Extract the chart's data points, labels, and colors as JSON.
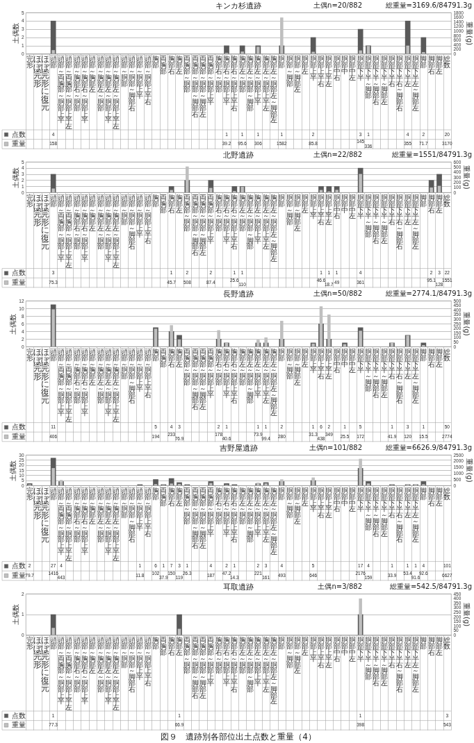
{
  "chart_data": [
    {
      "type": "bar",
      "title": "キンカ杉遺跡",
      "annotations": [
        "土偶n=20/882",
        "総重量=3169.6/84791.3g"
      ],
      "ylabel": "土偶数",
      "y2label": "重量(g)",
      "categories": [
        "完形",
        "ほぼ完形",
        "ほぼ完形に復元",
        "頭部",
        "頭部～両胸部～胴部上半",
        "頭部～両胸部～胴部上半左",
        "頭部～胸部右～胴部",
        "頭部～胸部右～胴部上半",
        "頭部～胸部左",
        "頭部～胸部左～胴部",
        "頭部～胸部左～胴部上半",
        "頭部～胸部左～胴部上半左",
        "頭部～胴部",
        "頭部～胴部～脚部右",
        "頭部～胴部上半",
        "頭部～胴部上半右",
        "胸部",
        "両胸部",
        "胸部右",
        "胸部左",
        "両胸部～胴部",
        "両胸部～胴部～脚部右",
        "両胸部～胴部～脚部左",
        "両胸部～胴部上半",
        "胸部右～胴部",
        "胸部右～胴部上半",
        "胸部右～胴部上半右",
        "胸部左～胴部",
        "胸部左～胴部～脚部",
        "胸部左～胴部上半",
        "胸部左～胴部上半左",
        "胸部左～胴部左～脚部左",
        "胴部",
        "胴部～脚部",
        "胴部～脚部左",
        "胴部左",
        "胴部上半",
        "胴部上半右",
        "胴部上半左",
        "胴部中右",
        "胴部中",
        "胴部中左",
        "胴部下半",
        "胴部下半～脚部",
        "胴部下半～脚部右",
        "胴部下半～脚部左",
        "胴部下半右",
        "胴部下半右～脚部右",
        "胴部下半左",
        "胴部下半左～脚部左",
        "脚部",
        "脚部右",
        "脚部左",
        "総数"
      ],
      "series": [
        {
          "name": "点数",
          "color": "#595959",
          "values": [
            null,
            null,
            null,
            4,
            null,
            null,
            null,
            null,
            null,
            null,
            null,
            null,
            null,
            null,
            null,
            null,
            null,
            null,
            null,
            null,
            null,
            null,
            null,
            null,
            null,
            1,
            null,
            1,
            null,
            1,
            null,
            null,
            1,
            null,
            null,
            null,
            2,
            null,
            null,
            null,
            null,
            null,
            3,
            1,
            null,
            null,
            null,
            null,
            4,
            null,
            2,
            null,
            null,
            null
          ],
          "value_labels": [
            null,
            null,
            null,
            "4",
            null,
            null,
            null,
            null,
            null,
            null,
            null,
            null,
            null,
            null,
            null,
            null,
            null,
            null,
            null,
            null,
            null,
            null,
            null,
            null,
            null,
            "1",
            null,
            "1",
            null,
            "1",
            null,
            null,
            "1",
            null,
            null,
            null,
            "2",
            null,
            null,
            null,
            null,
            null,
            "3",
            "1",
            null,
            null,
            null,
            null,
            "4",
            null,
            "2",
            null,
            null,
            "20"
          ]
        },
        {
          "name": "重量",
          "color": "#bfbfbf",
          "axis": "y2",
          "values": [
            null,
            null,
            null,
            158,
            null,
            null,
            null,
            null,
            null,
            null,
            null,
            null,
            null,
            null,
            null,
            null,
            null,
            null,
            null,
            null,
            null,
            null,
            null,
            null,
            null,
            39.2,
            null,
            95.6,
            null,
            306,
            null,
            null,
            1582,
            null,
            null,
            null,
            85.8,
            null,
            null,
            null,
            null,
            null,
            145,
            336,
            null,
            null,
            null,
            null,
            355,
            null,
            71.7,
            null,
            null,
            null
          ],
          "value_labels": [
            null,
            null,
            null,
            "158",
            null,
            null,
            null,
            null,
            null,
            null,
            null,
            null,
            null,
            null,
            null,
            null,
            null,
            null,
            null,
            null,
            null,
            null,
            null,
            null,
            null,
            "39.2",
            null,
            "95.6",
            null,
            "306",
            null,
            null,
            "1582",
            null,
            null,
            null,
            "85.8",
            null,
            null,
            null,
            null,
            null,
            "145",
            "336",
            null,
            null,
            null,
            null,
            "355",
            null,
            "71.7",
            null,
            null,
            "3170"
          ]
        }
      ],
      "ylim": [
        0,
        5
      ],
      "yticks": [
        0,
        1,
        2,
        3,
        4,
        5
      ],
      "y2lim": [
        0,
        1800
      ],
      "y2ticks": [
        0,
        200,
        400,
        600,
        800,
        1000,
        1200,
        1400,
        1600,
        1800
      ],
      "grid": "y",
      "legend": "bottom left"
    },
    {
      "type": "bar",
      "title": "北野遺跡",
      "annotations": [
        "土偶n=22/882",
        "総重量=1551/84791.3g"
      ],
      "ylabel": "土偶数",
      "y2label": "重量(g)",
      "categories": [
        "完形",
        "ほぼ完形",
        "ほぼ完形に復元",
        "頭部",
        "頭部～両胸部～胴部上半",
        "頭部～両胸部～胴部上半左",
        "頭部～胸部右～胴部",
        "頭部～胸部右～胴部上半",
        "頭部～胸部左",
        "頭部～胸部左～胴部",
        "頭部～胸部左～胴部上半",
        "頭部～胸部左～胴部上半左",
        "頭部～胴部",
        "頭部～胴部～脚部右",
        "頭部～胴部上半",
        "頭部～胴部上半右",
        "胸部",
        "両胸部",
        "胸部右",
        "胸部左",
        "両胸部～胴部",
        "両胸部～胴部～脚部右",
        "両胸部～胴部～脚部左",
        "両胸部～胴部上半",
        "胸部右～胴部",
        "胸部右～胴部上半",
        "胸部右～胴部上半右",
        "胸部左～胴部",
        "胸部左～胴部～脚部",
        "胸部左～胴部上半",
        "胸部左～胴部上半左",
        "胸部左～胴部左～脚部左",
        "胴部",
        "胴部～脚部",
        "胴部～脚部左",
        "胴部左",
        "胴部上半",
        "胴部上半右",
        "胴部上半左",
        "胴部中右",
        "胴部中",
        "胴部中左",
        "胴部下半",
        "胴部下半～脚部",
        "胴部下半～脚部右",
        "胴部下半～脚部左",
        "胴部下半右",
        "胴部下半右～脚部右",
        "胴部下半左",
        "胴部下半左～脚部左",
        "脚部",
        "脚部右",
        "脚部左",
        "総数"
      ],
      "series": [
        {
          "name": "点数",
          "color": "#595959",
          "values": [
            null,
            null,
            null,
            3,
            null,
            null,
            null,
            null,
            null,
            null,
            null,
            null,
            null,
            null,
            null,
            null,
            null,
            null,
            1,
            null,
            2,
            null,
            null,
            2,
            null,
            null,
            1,
            1,
            null,
            null,
            null,
            null,
            null,
            null,
            null,
            null,
            null,
            1,
            1,
            1,
            null,
            null,
            4,
            null,
            null,
            null,
            null,
            null,
            null,
            null,
            null,
            2,
            3,
            null
          ],
          "value_labels": [
            null,
            null,
            null,
            "3",
            null,
            null,
            null,
            null,
            null,
            null,
            null,
            null,
            null,
            null,
            null,
            null,
            null,
            null,
            "1",
            null,
            "2",
            null,
            null,
            "2",
            null,
            null,
            "1",
            "1",
            null,
            null,
            null,
            null,
            null,
            null,
            null,
            null,
            null,
            "1",
            "1",
            "1",
            null,
            null,
            "4",
            null,
            null,
            null,
            null,
            null,
            null,
            null,
            null,
            "2",
            "3",
            "22"
          ]
        },
        {
          "name": "重量",
          "color": "#bfbfbf",
          "axis": "y2",
          "values": [
            null,
            null,
            null,
            75.3,
            null,
            null,
            null,
            null,
            null,
            null,
            null,
            null,
            null,
            null,
            null,
            null,
            null,
            null,
            45.7,
            null,
            508,
            null,
            null,
            87.4,
            null,
            null,
            25.6,
            110,
            null,
            null,
            null,
            null,
            null,
            null,
            null,
            null,
            null,
            46.6,
            18.7,
            49,
            null,
            null,
            361,
            null,
            null,
            null,
            null,
            null,
            null,
            null,
            null,
            95.1,
            128,
            null
          ],
          "value_labels": [
            null,
            null,
            null,
            "75.3",
            null,
            null,
            null,
            null,
            null,
            null,
            null,
            null,
            null,
            null,
            null,
            null,
            null,
            null,
            "45.7",
            null,
            "508",
            null,
            null,
            "87.4",
            null,
            null,
            "25.6",
            "110",
            null,
            null,
            null,
            null,
            null,
            null,
            null,
            null,
            null,
            "46.6",
            "18.7",
            "49",
            null,
            null,
            "361",
            null,
            null,
            null,
            null,
            null,
            null,
            null,
            null,
            "95.1",
            "128",
            "1551"
          ]
        }
      ],
      "ylim": [
        0,
        5
      ],
      "yticks": [
        0,
        1,
        2,
        3,
        4,
        5
      ],
      "y2lim": [
        0,
        600
      ],
      "y2ticks": [
        0,
        100,
        200,
        300,
        400,
        500,
        600
      ],
      "grid": "y",
      "legend": "bottom left"
    },
    {
      "type": "bar",
      "title": "長野遺跡",
      "annotations": [
        "土偶n=50/882",
        "総重量=2774.1/84791.3g"
      ],
      "ylabel": "土偶数",
      "y2label": "重量(g)",
      "categories": [
        "完形",
        "ほぼ完形",
        "ほぼ完形に復元",
        "頭部",
        "頭部～両胸部～胴部上半",
        "頭部～両胸部～胴部上半左",
        "頭部～胸部右～胴部",
        "頭部～胸部右～胴部上半",
        "頭部～胸部左",
        "頭部～胸部左～胴部",
        "頭部～胸部左～胴部上半",
        "頭部～胸部左～胴部上半左",
        "頭部～胴部",
        "頭部～胴部～脚部右",
        "頭部～胴部上半",
        "頭部～胴部上半右",
        "胸部",
        "両胸部",
        "胸部右",
        "胸部左",
        "両胸部～胴部",
        "両胸部～胴部～脚部右",
        "両胸部～胴部～脚部左",
        "両胸部～胴部上半",
        "胸部右～胴部",
        "胸部右～胴部上半",
        "胸部右～胴部上半右",
        "胸部左～胴部",
        "胸部左～胴部～脚部",
        "胸部左～胴部上半",
        "胸部左～胴部上半左",
        "胸部左～胴部左～脚部左",
        "胴部",
        "胴部～脚部",
        "胴部～脚部左",
        "胴部左",
        "胴部上半",
        "胴部上半右",
        "胴部上半左",
        "胴部中右",
        "胴部中",
        "胴部中左",
        "胴部下半",
        "胴部下半～脚部",
        "胴部下半～脚部右",
        "胴部下半～脚部左",
        "胴部下半右",
        "胴部下半右～脚部右",
        "胴部下半左",
        "胴部下半左～脚部左",
        "脚部",
        "脚部右",
        "脚部左",
        "総数"
      ],
      "series": [
        {
          "name": "点数",
          "color": "#595959",
          "values": [
            null,
            null,
            null,
            11,
            null,
            null,
            null,
            null,
            null,
            null,
            null,
            null,
            null,
            null,
            null,
            null,
            5,
            null,
            4,
            3,
            null,
            null,
            null,
            null,
            2,
            1,
            null,
            null,
            null,
            1,
            1,
            null,
            2,
            null,
            null,
            null,
            1,
            6,
            2,
            null,
            1,
            null,
            5,
            null,
            null,
            null,
            1,
            null,
            3,
            null,
            1,
            null,
            null,
            null
          ],
          "value_labels": [
            null,
            null,
            null,
            "11",
            null,
            null,
            null,
            null,
            null,
            null,
            null,
            null,
            null,
            null,
            null,
            null,
            "5",
            null,
            "4",
            "3",
            null,
            null,
            null,
            null,
            "2",
            "1",
            null,
            null,
            null,
            "1",
            "1",
            null,
            "2",
            null,
            null,
            null,
            "1",
            "6",
            "2",
            null,
            "1",
            null,
            "5",
            null,
            null,
            null,
            "1",
            null,
            "3",
            null,
            "1",
            null,
            null,
            "50"
          ]
        },
        {
          "name": "重量",
          "color": "#bfbfbf",
          "axis": "y2",
          "values": [
            null,
            null,
            null,
            406,
            null,
            null,
            null,
            null,
            null,
            null,
            null,
            null,
            null,
            null,
            null,
            null,
            194,
            null,
            233,
            76.9,
            null,
            null,
            null,
            null,
            178,
            40.6,
            null,
            null,
            null,
            73.9,
            99.4,
            null,
            280,
            null,
            null,
            null,
            31.3,
            438,
            349,
            null,
            25.5,
            null,
            172,
            null,
            null,
            null,
            41.9,
            null,
            120,
            null,
            15.5,
            null,
            null,
            null
          ],
          "value_labels": [
            null,
            null,
            null,
            "406",
            null,
            null,
            null,
            null,
            null,
            null,
            null,
            null,
            null,
            null,
            null,
            null,
            "194",
            null,
            "233",
            "76.9",
            null,
            null,
            null,
            null,
            "178",
            "40.6",
            null,
            null,
            null,
            "73.9",
            "99.4",
            null,
            "280",
            null,
            null,
            null,
            "31.3",
            "438",
            "349",
            null,
            "25.5",
            null,
            "172",
            null,
            null,
            null,
            "41.9",
            null,
            "120",
            null,
            "15.5",
            null,
            null,
            "2774"
          ]
        }
      ],
      "ylim": [
        0,
        12
      ],
      "yticks": [
        0,
        2,
        4,
        6,
        8,
        10,
        12
      ],
      "y2lim": [
        0,
        500
      ],
      "y2ticks": [
        0,
        50,
        100,
        150,
        200,
        250,
        300,
        350,
        400,
        450,
        500
      ],
      "grid": "y",
      "legend": "bottom left"
    },
    {
      "type": "bar",
      "title": "吉野屋遺跡",
      "annotations": [
        "土偶n=101/882",
        "総重量=6626.9/84791.3g"
      ],
      "ylabel": "土偶数",
      "y2label": "重量(g)",
      "categories": [
        "完形",
        "ほぼ完形",
        "ほぼ完形に復元",
        "頭部",
        "頭部～両胸部～胴部上半",
        "頭部～両胸部～胴部上半左",
        "頭部～胸部右～胴部",
        "頭部～胸部右～胴部上半",
        "頭部～胸部左",
        "頭部～胸部左～胴部",
        "頭部～胸部左～胴部上半",
        "頭部～胸部左～胴部上半左",
        "頭部～胴部",
        "頭部～胴部～脚部右",
        "頭部～胴部上半",
        "頭部～胴部上半右",
        "胸部",
        "両胸部",
        "胸部右",
        "胸部左",
        "両胸部～胴部",
        "両胸部～胴部～脚部右",
        "両胸部～胴部～脚部左",
        "両胸部～胴部上半",
        "胸部右～胴部",
        "胸部右～胴部上半",
        "胸部右～胴部上半右",
        "胸部左～胴部",
        "胸部左～胴部～脚部",
        "胸部左～胴部上半",
        "胸部左～胴部上半左",
        "胸部左～胴部左～脚部左",
        "胴部",
        "胴部～脚部",
        "胴部～脚部左",
        "胴部左",
        "胴部上半",
        "胴部上半右",
        "胴部上半左",
        "胴部中右",
        "胴部中",
        "胴部中左",
        "胴部下半",
        "胴部下半～脚部",
        "胴部下半～脚部右",
        "胴部下半～脚部左",
        "胴部下半右",
        "胴部下半右～脚部右",
        "胴部下半左",
        "胴部下半左～脚部左",
        "脚部",
        "脚部右",
        "脚部左",
        "総数"
      ],
      "series": [
        {
          "name": "点数",
          "color": "#595959",
          "values": [
            2,
            null,
            null,
            27,
            4,
            null,
            null,
            null,
            null,
            null,
            null,
            null,
            null,
            null,
            1,
            null,
            6,
            1,
            7,
            3,
            1,
            null,
            null,
            4,
            null,
            2,
            1,
            null,
            null,
            2,
            3,
            null,
            4,
            null,
            null,
            null,
            5,
            null,
            null,
            null,
            null,
            null,
            17,
            4,
            null,
            null,
            1,
            null,
            1,
            1,
            4,
            null,
            null,
            null
          ],
          "value_labels": [
            "2",
            null,
            null,
            "27",
            "4",
            null,
            null,
            null,
            null,
            null,
            null,
            null,
            null,
            null,
            "1",
            null,
            "6",
            "1",
            "7",
            "3",
            "1",
            null,
            null,
            "4",
            null,
            "2",
            "1",
            null,
            null,
            "2",
            "3",
            null,
            "4",
            null,
            null,
            null,
            "5",
            null,
            null,
            null,
            null,
            null,
            "17",
            "4",
            null,
            null,
            "1",
            null,
            "1",
            "1",
            "4",
            null,
            null,
            "101"
          ]
        },
        {
          "name": "重量",
          "color": "#bfbfbf",
          "axis": "y2",
          "values": [
            79.7,
            null,
            null,
            1416,
            443,
            null,
            null,
            null,
            null,
            null,
            null,
            null,
            null,
            null,
            11.8,
            null,
            102,
            37.9,
            150,
            119,
            26.3,
            null,
            null,
            187,
            null,
            47.2,
            14.3,
            null,
            null,
            221,
            161,
            null,
            493,
            null,
            null,
            null,
            646,
            null,
            null,
            null,
            null,
            null,
            2176,
            159,
            null,
            null,
            33.9,
            null,
            53.4,
            91.6,
            92.6,
            null,
            null,
            null
          ],
          "value_labels": [
            "79.7",
            null,
            null,
            "1416",
            "443",
            null,
            null,
            null,
            null,
            null,
            null,
            null,
            null,
            null,
            "11.8",
            null,
            "102",
            "37.9",
            "150",
            "119",
            "26.3",
            null,
            null,
            "187",
            null,
            "47.2",
            "14.3",
            null,
            null,
            "221",
            "161",
            null,
            "493",
            null,
            null,
            null,
            "646",
            null,
            null,
            null,
            null,
            null,
            "2176",
            "159",
            null,
            null,
            "33.9",
            null,
            "53.4",
            "91.6",
            "92.6",
            null,
            null,
            "6627"
          ]
        }
      ],
      "ylim": [
        0,
        30
      ],
      "yticks": [
        0,
        5,
        10,
        15,
        20,
        25,
        30
      ],
      "y2lim": [
        0,
        2500
      ],
      "y2ticks": [
        0,
        500,
        1000,
        1500,
        2000,
        2500
      ],
      "grid": "y",
      "legend": "bottom left"
    },
    {
      "type": "bar",
      "title": "耳取遺跡",
      "annotations": [
        "土偶n=3/882",
        "総重量=542.5/84791.3g",
        "図９　遺跡別各部位出土点数と重量（4）"
      ],
      "ylabel": "土偶数",
      "y2label": "重量(g)",
      "categories": [
        "完形",
        "ほぼ完形",
        "ほぼ完形に復元",
        "頭部",
        "頭部～両胸部～胴部上半",
        "頭部～両胸部～胴部上半左",
        "頭部～胸部右～胴部",
        "頭部～胸部右～胴部上半",
        "頭部～胸部左",
        "頭部～胸部左～胴部",
        "頭部～胸部左～胴部上半",
        "頭部～胸部左～胴部上半左",
        "頭部～胴部",
        "頭部～胴部～脚部右",
        "頭部～胴部上半",
        "頭部～胴部上半右",
        "胸部",
        "両胸部",
        "胸部右",
        "胸部左",
        "両胸部～胴部",
        "両胸部～胴部～脚部右",
        "両胸部～胴部～脚部左",
        "両胸部～胴部上半",
        "胸部右～胴部",
        "胸部右～胴部上半",
        "胸部右～胴部上半右",
        "胸部左～胴部",
        "胸部左～胴部～脚部",
        "胸部左～胴部上半",
        "胸部左～胴部上半左",
        "胸部左～胴部左～脚部左",
        "胴部",
        "胴部～脚部",
        "胴部～脚部左",
        "胴部左",
        "胴部上半",
        "胴部上半右",
        "胴部上半左",
        "胴部中右",
        "胴部中",
        "胴部中左",
        "胴部下半",
        "胴部下半～脚部",
        "胴部下半～脚部右",
        "胴部下半～脚部左",
        "胴部下半右",
        "胴部下半右～脚部右",
        "胴部下半左",
        "胴部下半左～脚部左",
        "脚部",
        "脚部右",
        "脚部左",
        "総数"
      ],
      "series": [
        {
          "name": "点数",
          "color": "#595959",
          "values": [
            null,
            null,
            null,
            1,
            null,
            null,
            null,
            null,
            null,
            null,
            null,
            null,
            null,
            null,
            null,
            null,
            null,
            null,
            null,
            1,
            null,
            null,
            null,
            null,
            null,
            null,
            null,
            null,
            null,
            null,
            null,
            null,
            null,
            null,
            null,
            null,
            null,
            null,
            null,
            null,
            null,
            null,
            1,
            null,
            null,
            null,
            null,
            null,
            null,
            null,
            null,
            null,
            null,
            null
          ],
          "value_labels": [
            null,
            null,
            null,
            "1",
            null,
            null,
            null,
            null,
            null,
            null,
            null,
            null,
            null,
            null,
            null,
            null,
            null,
            null,
            null,
            "1",
            null,
            null,
            null,
            null,
            null,
            null,
            null,
            null,
            null,
            null,
            null,
            null,
            null,
            null,
            null,
            null,
            null,
            null,
            null,
            null,
            null,
            null,
            "1",
            null,
            null,
            null,
            null,
            null,
            null,
            null,
            null,
            null,
            null,
            "3"
          ]
        },
        {
          "name": "重量",
          "color": "#bfbfbf",
          "axis": "y2",
          "values": [
            null,
            null,
            null,
            77.3,
            null,
            null,
            null,
            null,
            null,
            null,
            null,
            null,
            null,
            null,
            null,
            null,
            null,
            null,
            null,
            66.9,
            null,
            null,
            null,
            null,
            null,
            null,
            null,
            null,
            null,
            null,
            null,
            null,
            null,
            null,
            null,
            null,
            null,
            null,
            null,
            null,
            null,
            null,
            398,
            null,
            null,
            null,
            null,
            null,
            null,
            null,
            null,
            null,
            null,
            null
          ],
          "value_labels": [
            null,
            null,
            null,
            "77.3",
            null,
            null,
            null,
            null,
            null,
            null,
            null,
            null,
            null,
            null,
            null,
            null,
            null,
            null,
            null,
            "66.9",
            null,
            null,
            null,
            null,
            null,
            null,
            null,
            null,
            null,
            null,
            null,
            null,
            null,
            null,
            null,
            null,
            null,
            null,
            null,
            null,
            null,
            null,
            "398",
            null,
            null,
            null,
            null,
            null,
            null,
            null,
            null,
            null,
            null,
            "543"
          ]
        }
      ],
      "ylim": [
        0,
        2
      ],
      "yticks": [
        0,
        1,
        2
      ],
      "y2lim": [
        0,
        450
      ],
      "y2ticks": [
        0,
        50,
        100,
        150,
        200,
        250,
        300,
        350,
        400,
        450
      ],
      "grid": "y",
      "legend": "bottom left"
    }
  ]
}
